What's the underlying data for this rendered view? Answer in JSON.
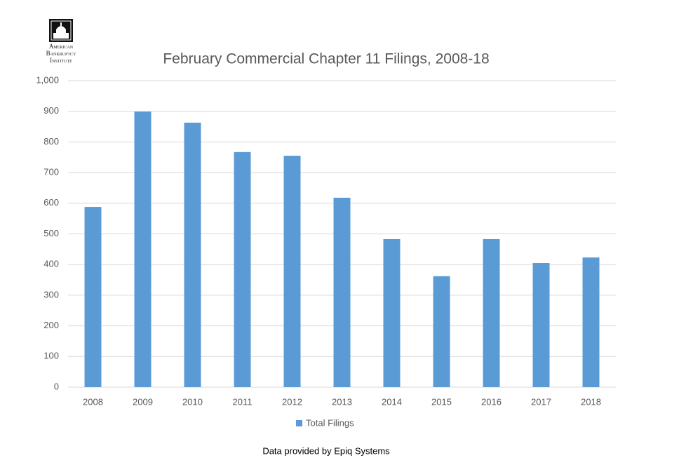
{
  "chart_data": {
    "type": "bar",
    "title": "February Commercial Chapter 11 Filings, 2008-18",
    "logo_lines": [
      "American",
      "Bankruptcy",
      "Institute"
    ],
    "source": "Data provided by Epiq Systems",
    "categories": [
      "2008",
      "2009",
      "2010",
      "2011",
      "2012",
      "2013",
      "2014",
      "2015",
      "2016",
      "2017",
      "2018"
    ],
    "series": [
      {
        "name": "Total Filings",
        "color": "#5b9bd5",
        "values": [
          588,
          899,
          863,
          767,
          755,
          618,
          483,
          362,
          483,
          405,
          423
        ]
      }
    ],
    "ylim": [
      0,
      1000
    ],
    "yticks": [
      0,
      100,
      200,
      300,
      400,
      500,
      600,
      700,
      800,
      900,
      {
        "value": 1000,
        "label": "1,000"
      }
    ],
    "grid": true,
    "legend": "bottom"
  }
}
